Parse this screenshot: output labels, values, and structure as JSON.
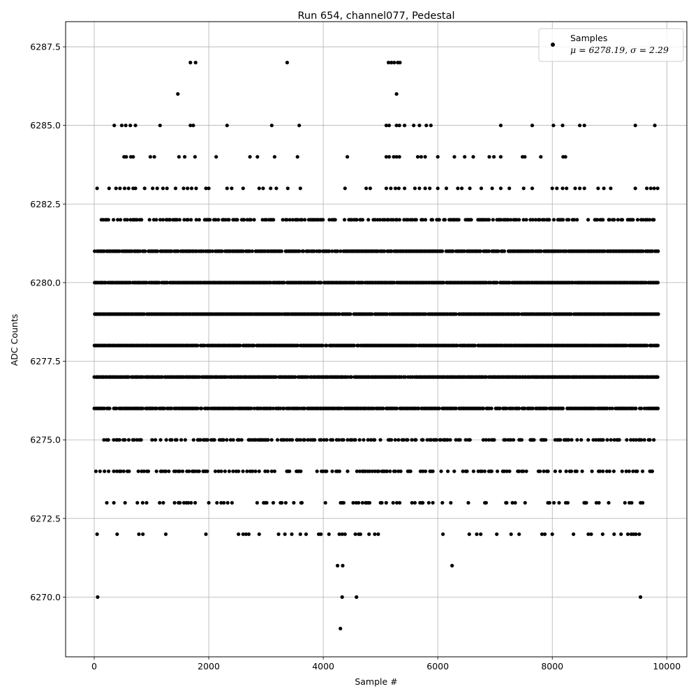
{
  "chart_data": {
    "type": "scatter",
    "title": "Run 654, channel077, Pedestal",
    "xlabel": "Sample #",
    "ylabel": "ADC Counts",
    "xlim": [
      -500,
      10350
    ],
    "ylim": [
      6268.1,
      6288.3
    ],
    "xticks": [
      0,
      2000,
      4000,
      6000,
      8000,
      10000
    ],
    "yticks": [
      6270.0,
      6272.5,
      6275.0,
      6277.5,
      6280.0,
      6282.5,
      6285.0,
      6287.5
    ],
    "xtick_labels": [
      "0",
      "2000",
      "4000",
      "6000",
      "8000",
      "10000"
    ],
    "ytick_labels": [
      "6270.0",
      "6272.5",
      "6275.0",
      "6277.5",
      "6280.0",
      "6282.5",
      "6285.0",
      "6287.5"
    ],
    "grid": true,
    "legend_position": "top-right",
    "marker_color": "#000000",
    "series": [
      {
        "name": "Samples",
        "stats_label": "μ = 6278.19, σ = 2.29",
        "n_samples": 9850,
        "bands": [
          {
            "y": 6276,
            "x_ranges": [
              [
                0,
                9850
              ]
            ]
          },
          {
            "y": 6277,
            "x_ranges": [
              [
                0,
                9850
              ]
            ]
          },
          {
            "y": 6278,
            "x_ranges": [
              [
                0,
                9850
              ]
            ]
          },
          {
            "y": 6279,
            "x_ranges": [
              [
                0,
                9850
              ]
            ]
          },
          {
            "y": 6280,
            "x_ranges": [
              [
                0,
                9850
              ]
            ]
          },
          {
            "y": 6281,
            "x_ranges": [
              [
                0,
                9850
              ]
            ]
          },
          {
            "y": 6282,
            "x_ranges": [
              [
                0,
                9850
              ]
            ]
          },
          {
            "y": 6275,
            "x_ranges": [
              [
                0,
                9800
              ]
            ]
          },
          {
            "y": 6274,
            "x_ranges": [
              [
                0,
                9800
              ]
            ]
          },
          {
            "y": 6273,
            "x_ranges": [
              [
                50,
                9600
              ]
            ]
          }
        ],
        "points": [
          [
            60,
            6270
          ],
          [
            4300,
            6269
          ],
          [
            4330,
            6270
          ],
          [
            4580,
            6270
          ],
          [
            9540,
            6270
          ],
          [
            4250,
            6271
          ],
          [
            4340,
            6271
          ],
          [
            6250,
            6271
          ],
          [
            50,
            6272
          ],
          [
            400,
            6272
          ],
          [
            780,
            6272
          ],
          [
            850,
            6272
          ],
          [
            1250,
            6272
          ],
          [
            1950,
            6272
          ],
          [
            2520,
            6272
          ],
          [
            2600,
            6272
          ],
          [
            2650,
            6272
          ],
          [
            2700,
            6272
          ],
          [
            2880,
            6272
          ],
          [
            3220,
            6272
          ],
          [
            3330,
            6272
          ],
          [
            3450,
            6272
          ],
          [
            3600,
            6272
          ],
          [
            3700,
            6272
          ],
          [
            3920,
            6272
          ],
          [
            3960,
            6272
          ],
          [
            4100,
            6272
          ],
          [
            4280,
            6272
          ],
          [
            4330,
            6272
          ],
          [
            4380,
            6272
          ],
          [
            4560,
            6272
          ],
          [
            4620,
            6272
          ],
          [
            4650,
            6272
          ],
          [
            4800,
            6272
          ],
          [
            4900,
            6272
          ],
          [
            4960,
            6272
          ],
          [
            6090,
            6272
          ],
          [
            6550,
            6272
          ],
          [
            6680,
            6272
          ],
          [
            6750,
            6272
          ],
          [
            7030,
            6272
          ],
          [
            7280,
            6272
          ],
          [
            7420,
            6272
          ],
          [
            7820,
            6272
          ],
          [
            7870,
            6272
          ],
          [
            8000,
            6272
          ],
          [
            8370,
            6272
          ],
          [
            8630,
            6272
          ],
          [
            8680,
            6272
          ],
          [
            8880,
            6272
          ],
          [
            9080,
            6272
          ],
          [
            9200,
            6272
          ],
          [
            9320,
            6272
          ],
          [
            9380,
            6272
          ],
          [
            9420,
            6272
          ],
          [
            9460,
            6272
          ],
          [
            9520,
            6272
          ],
          [
            50,
            6283
          ],
          [
            260,
            6283
          ],
          [
            380,
            6283
          ],
          [
            450,
            6283
          ],
          [
            530,
            6283
          ],
          [
            600,
            6283
          ],
          [
            680,
            6283
          ],
          [
            720,
            6283
          ],
          [
            880,
            6283
          ],
          [
            1020,
            6283
          ],
          [
            1100,
            6283
          ],
          [
            1200,
            6283
          ],
          [
            1270,
            6283
          ],
          [
            1420,
            6283
          ],
          [
            1560,
            6283
          ],
          [
            1630,
            6283
          ],
          [
            1700,
            6283
          ],
          [
            1780,
            6283
          ],
          [
            1950,
            6283
          ],
          [
            2000,
            6283
          ],
          [
            2320,
            6283
          ],
          [
            2400,
            6283
          ],
          [
            2600,
            6283
          ],
          [
            2880,
            6283
          ],
          [
            2950,
            6283
          ],
          [
            3080,
            6283
          ],
          [
            3180,
            6283
          ],
          [
            3380,
            6283
          ],
          [
            3600,
            6283
          ],
          [
            4380,
            6283
          ],
          [
            4750,
            6283
          ],
          [
            4820,
            6283
          ],
          [
            5100,
            6283
          ],
          [
            5180,
            6283
          ],
          [
            5260,
            6283
          ],
          [
            5320,
            6283
          ],
          [
            5420,
            6283
          ],
          [
            5600,
            6283
          ],
          [
            5680,
            6283
          ],
          [
            5780,
            6283
          ],
          [
            5860,
            6283
          ],
          [
            6000,
            6283
          ],
          [
            6150,
            6283
          ],
          [
            6350,
            6283
          ],
          [
            6420,
            6283
          ],
          [
            6560,
            6283
          ],
          [
            6760,
            6283
          ],
          [
            6950,
            6283
          ],
          [
            7100,
            6283
          ],
          [
            7250,
            6283
          ],
          [
            7500,
            6283
          ],
          [
            7650,
            6283
          ],
          [
            8000,
            6283
          ],
          [
            8080,
            6283
          ],
          [
            8180,
            6283
          ],
          [
            8250,
            6283
          ],
          [
            8400,
            6283
          ],
          [
            8480,
            6283
          ],
          [
            8560,
            6283
          ],
          [
            8800,
            6283
          ],
          [
            8900,
            6283
          ],
          [
            9020,
            6283
          ],
          [
            9450,
            6283
          ],
          [
            9650,
            6283
          ],
          [
            9720,
            6283
          ],
          [
            9780,
            6283
          ],
          [
            9840,
            6283
          ],
          [
            520,
            6284
          ],
          [
            560,
            6284
          ],
          [
            640,
            6284
          ],
          [
            680,
            6284
          ],
          [
            980,
            6284
          ],
          [
            1050,
            6284
          ],
          [
            1480,
            6284
          ],
          [
            1580,
            6284
          ],
          [
            1760,
            6284
          ],
          [
            2130,
            6284
          ],
          [
            2720,
            6284
          ],
          [
            2850,
            6284
          ],
          [
            3150,
            6284
          ],
          [
            3550,
            6284
          ],
          [
            4420,
            6284
          ],
          [
            5100,
            6284
          ],
          [
            5150,
            6284
          ],
          [
            5230,
            6284
          ],
          [
            5280,
            6284
          ],
          [
            5330,
            6284
          ],
          [
            5650,
            6284
          ],
          [
            5710,
            6284
          ],
          [
            5780,
            6284
          ],
          [
            6000,
            6284
          ],
          [
            6290,
            6284
          ],
          [
            6470,
            6284
          ],
          [
            6620,
            6284
          ],
          [
            6900,
            6284
          ],
          [
            6980,
            6284
          ],
          [
            7100,
            6284
          ],
          [
            7480,
            6284
          ],
          [
            7520,
            6284
          ],
          [
            7800,
            6284
          ],
          [
            8190,
            6284
          ],
          [
            8230,
            6284
          ],
          [
            350,
            6285
          ],
          [
            480,
            6285
          ],
          [
            550,
            6285
          ],
          [
            630,
            6285
          ],
          [
            720,
            6285
          ],
          [
            1150,
            6285
          ],
          [
            1680,
            6285
          ],
          [
            1730,
            6285
          ],
          [
            2320,
            6285
          ],
          [
            3100,
            6285
          ],
          [
            3580,
            6285
          ],
          [
            5100,
            6285
          ],
          [
            5150,
            6285
          ],
          [
            5280,
            6285
          ],
          [
            5330,
            6285
          ],
          [
            5420,
            6285
          ],
          [
            5580,
            6285
          ],
          [
            5680,
            6285
          ],
          [
            5800,
            6285
          ],
          [
            5880,
            6285
          ],
          [
            7100,
            6285
          ],
          [
            7650,
            6285
          ],
          [
            8020,
            6285
          ],
          [
            8180,
            6285
          ],
          [
            8480,
            6285
          ],
          [
            8560,
            6285
          ],
          [
            9450,
            6285
          ],
          [
            9790,
            6285
          ],
          [
            1460,
            6286
          ],
          [
            5280,
            6286
          ],
          [
            1680,
            6287
          ],
          [
            1770,
            6287
          ],
          [
            3370,
            6287
          ],
          [
            5140,
            6287
          ],
          [
            5190,
            6287
          ],
          [
            5240,
            6287
          ],
          [
            5300,
            6287
          ],
          [
            5340,
            6287
          ]
        ]
      }
    ]
  }
}
